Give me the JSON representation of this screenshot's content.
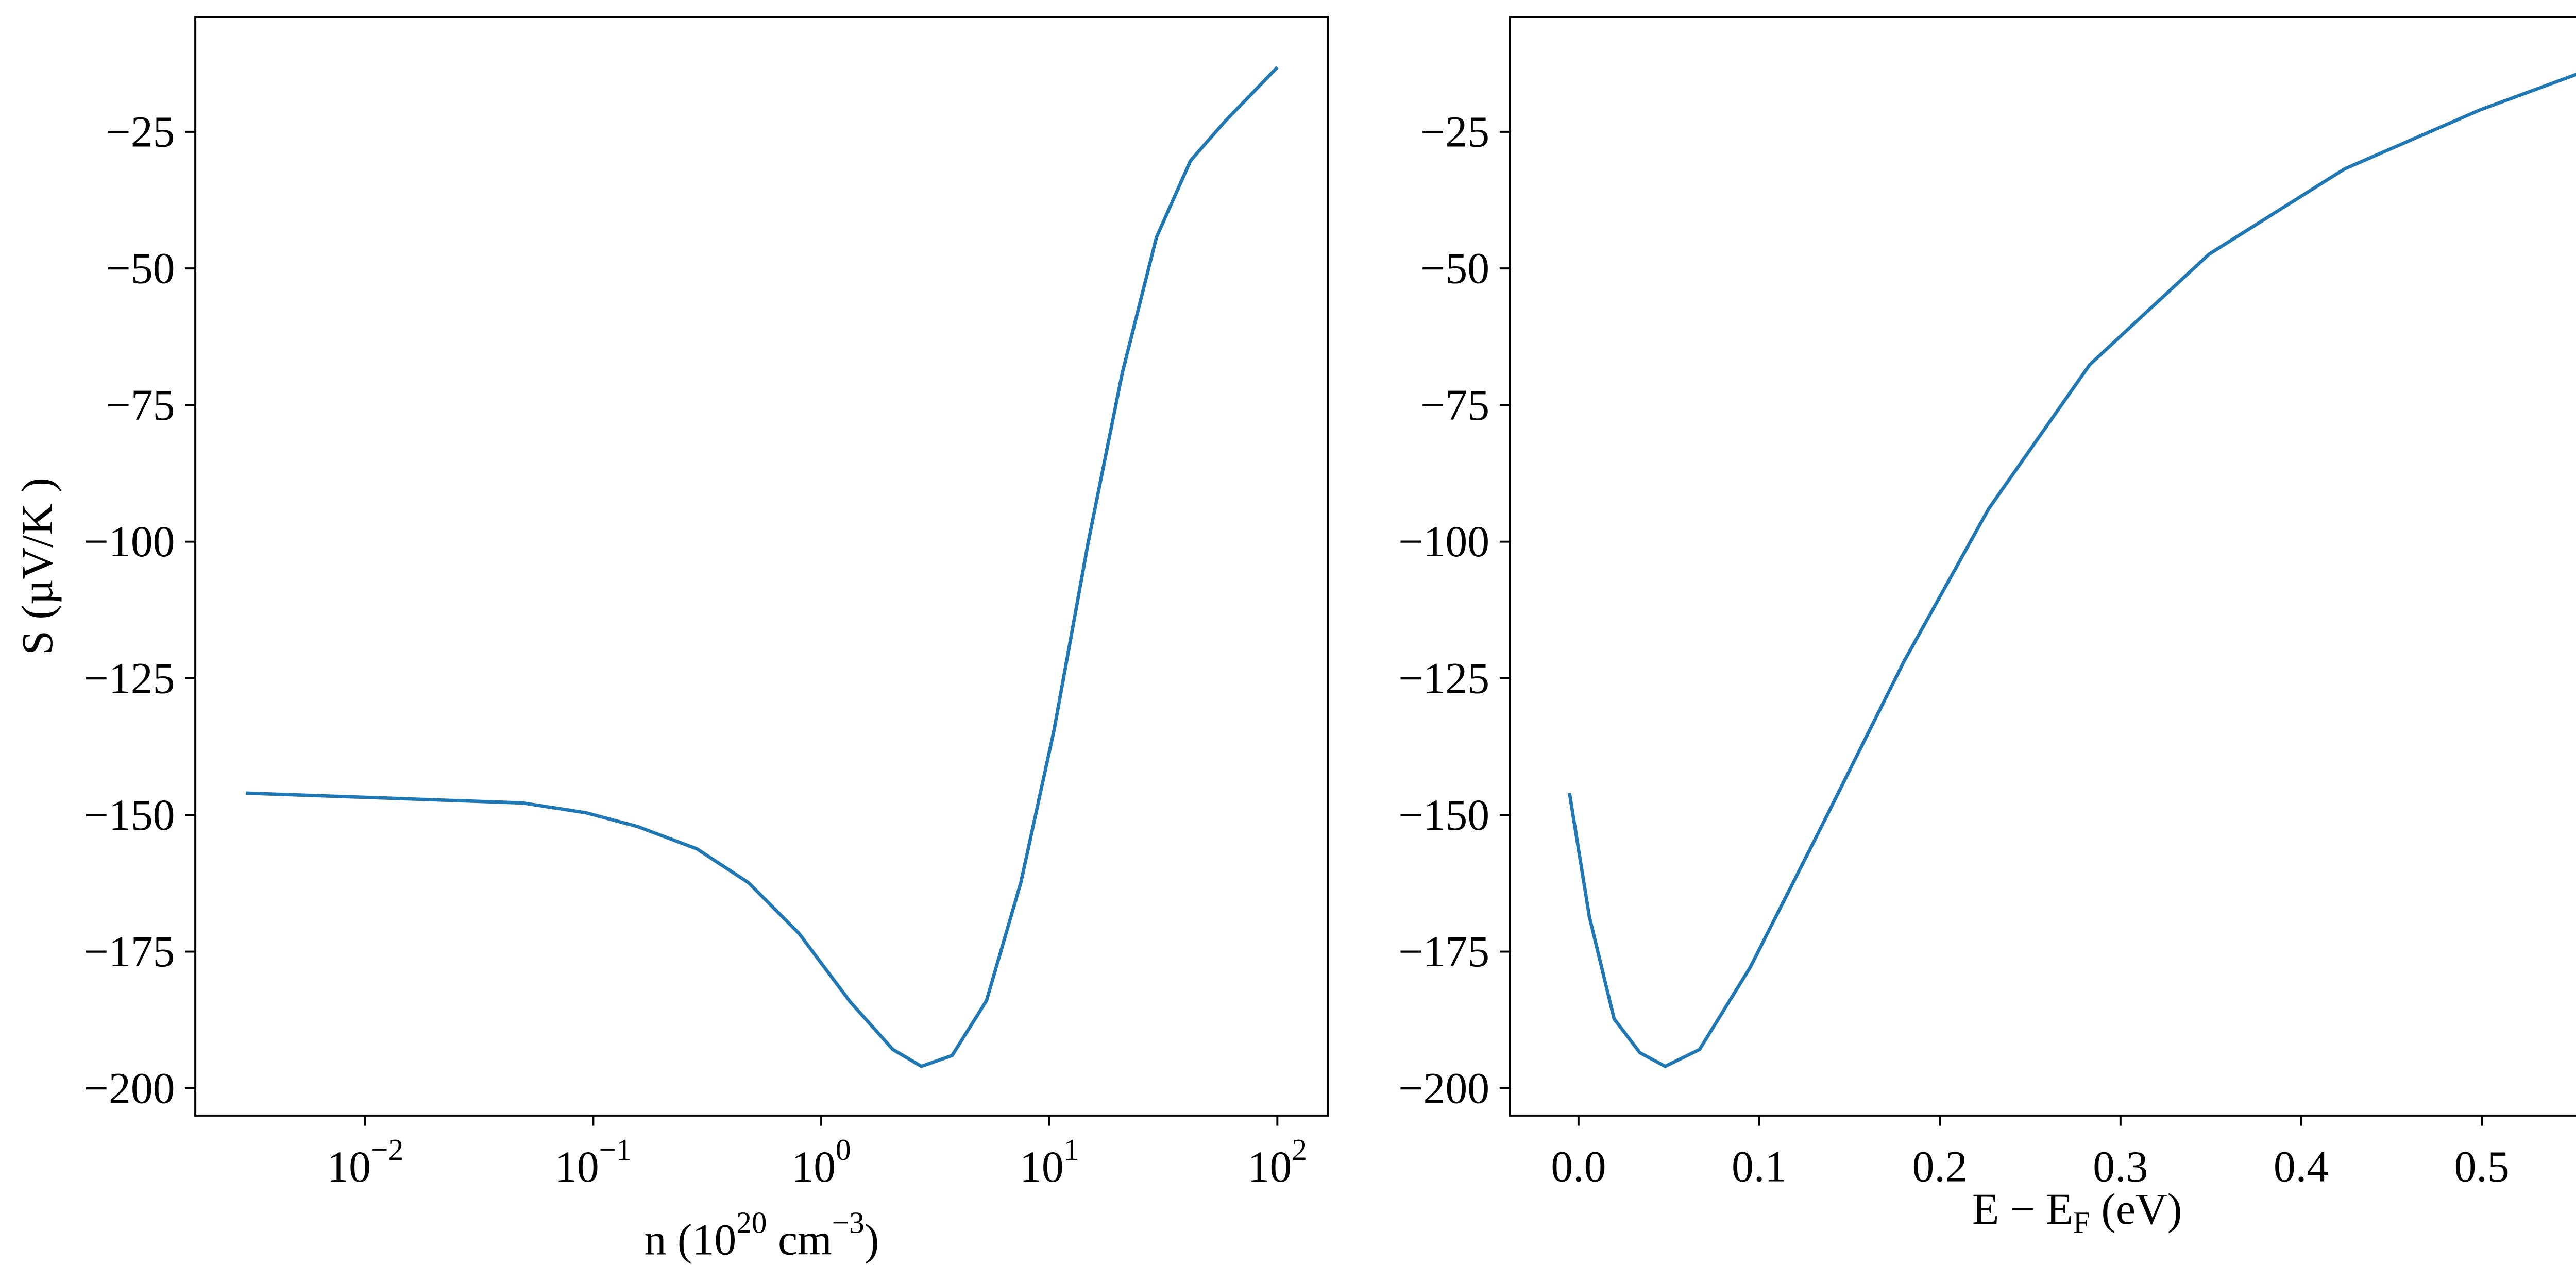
{
  "chart_data": [
    {
      "type": "line",
      "xscale": "log",
      "xlabel": [
        "n (10",
        "20",
        " cm",
        "−3",
        ")"
      ],
      "xlabel_script": "sup",
      "ylabel": "S (µV/K )",
      "xlim": [
        0.0018,
        167
      ],
      "ylim": [
        -205,
        -4
      ],
      "xticks": [
        {
          "value": 0.01,
          "label": "10−2"
        },
        {
          "value": 0.1,
          "label": "10−1"
        },
        {
          "value": 1,
          "label": "100"
        },
        {
          "value": 10,
          "label": "101"
        },
        {
          "value": 100,
          "label": "102"
        }
      ],
      "yticks": [
        {
          "value": -25,
          "label": "−25"
        },
        {
          "value": -50,
          "label": "−50"
        },
        {
          "value": -75,
          "label": "−75"
        },
        {
          "value": -100,
          "label": "−100"
        },
        {
          "value": -125,
          "label": "−125"
        },
        {
          "value": -150,
          "label": "−150"
        },
        {
          "value": -175,
          "label": "−175"
        },
        {
          "value": -200,
          "label": "−200"
        }
      ],
      "color": "#1f77b4",
      "x": [
        0.003,
        0.049,
        0.093,
        0.156,
        0.285,
        0.48,
        0.8,
        1.34,
        2.06,
        2.75,
        3.75,
        5.3,
        7.5,
        10.5,
        14.8,
        20.9,
        29.5,
        41.6,
        58.9,
        100
      ],
      "values": [
        -146,
        -147.8,
        -149.6,
        -152.1,
        -156.2,
        -162.4,
        -171.7,
        -184.2,
        -192.9,
        -196,
        -194,
        -184,
        -162.4,
        -134.4,
        -100.2,
        -69.1,
        -44.3,
        -30.3,
        -23.1,
        -13.2
      ]
    },
    {
      "type": "line",
      "xscale": "linear",
      "xlabel": [
        "E − E",
        "F",
        " (eV)"
      ],
      "xlabel_script": "sub",
      "xlim": [
        -0.038,
        0.59
      ],
      "ylim": [
        -205,
        -4
      ],
      "xticks": [
        {
          "value": 0,
          "label": "0.0"
        },
        0.1,
        0.2,
        0.3,
        0.4,
        0.5
      ],
      "yticks": [
        {
          "value": -25,
          "label": "−25"
        },
        {
          "value": -50,
          "label": "−50"
        },
        {
          "value": -75,
          "label": "−75"
        },
        {
          "value": -100,
          "label": "−100"
        },
        {
          "value": -125,
          "label": "−125"
        },
        {
          "value": -150,
          "label": "−150"
        },
        {
          "value": -175,
          "label": "−175"
        },
        {
          "value": -200,
          "label": "−200"
        }
      ],
      "color": "#1f77b4",
      "x": [
        -0.005,
        0.006,
        0.0197,
        0.034,
        0.048,
        0.067,
        0.095,
        0.133,
        0.18,
        0.227,
        0.283,
        0.349,
        0.424,
        0.499,
        0.563
      ],
      "values": [
        -146,
        -168.6,
        -187.3,
        -193.5,
        -196,
        -192.9,
        -177.9,
        -153.1,
        -122,
        -94,
        -67.6,
        -47.4,
        -31.8,
        -21,
        -13.2
      ]
    }
  ]
}
